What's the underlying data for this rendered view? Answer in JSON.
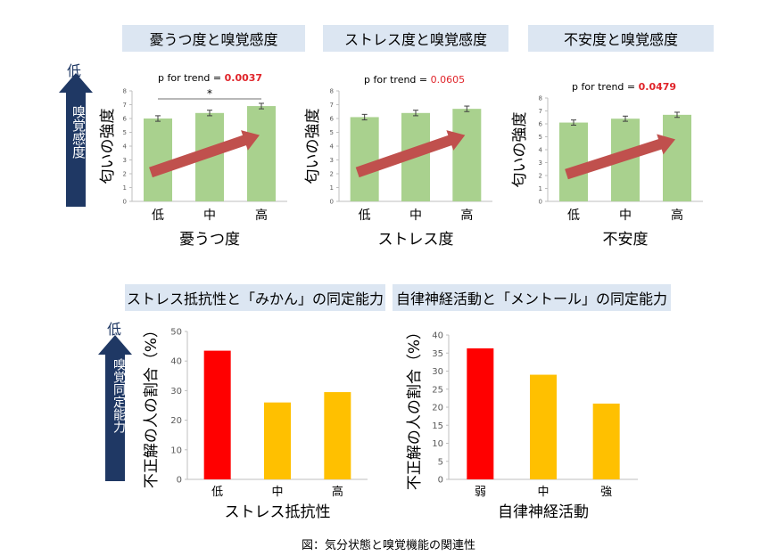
{
  "top_left_label": "低",
  "top_side_label": "嗅覚感度",
  "bottom_left_label": "低",
  "bottom_side_label": "嗅覚同定能力",
  "caption": "図：気分状態と嗅覚機能の関連性",
  "chart_data": [
    {
      "type": "bar",
      "title": "憂うつ度と嗅覚感度",
      "categories": [
        "低",
        "中",
        "高"
      ],
      "values": [
        6.0,
        6.4,
        6.9
      ],
      "errors": [
        0.2,
        0.2,
        0.2
      ],
      "ylabel": "匂いの強度",
      "xlabel": "憂うつ度",
      "ylim": [
        0,
        8
      ],
      "yticks": [
        0,
        1,
        2,
        3,
        4,
        5,
        6,
        7,
        8
      ],
      "trend_prefix": "p for trend = ",
      "trend_value": "0.0037",
      "significance": "*",
      "bar_color": "#a9d18e",
      "trend_arrow_color": "#c0504d"
    },
    {
      "type": "bar",
      "title": "ストレス度と嗅覚感度",
      "categories": [
        "低",
        "中",
        "高"
      ],
      "values": [
        6.1,
        6.4,
        6.7
      ],
      "errors": [
        0.2,
        0.2,
        0.2
      ],
      "ylabel": "匂いの強度",
      "xlabel": "ストレス度",
      "ylim": [
        0,
        8
      ],
      "yticks": [
        0,
        1,
        2,
        3,
        4,
        5,
        6,
        7,
        8
      ],
      "trend_prefix": "p for trend = ",
      "trend_value": "0.0605",
      "bar_color": "#a9d18e",
      "trend_arrow_color": "#c0504d"
    },
    {
      "type": "bar",
      "title": "不安度と嗅覚感度",
      "categories": [
        "低",
        "中",
        "高"
      ],
      "values": [
        6.1,
        6.4,
        6.7
      ],
      "errors": [
        0.2,
        0.2,
        0.2
      ],
      "ylabel": "匂いの強度",
      "xlabel": "不安度",
      "ylim": [
        0,
        8
      ],
      "yticks": [
        0,
        1,
        2,
        3,
        4,
        5,
        6,
        7,
        8
      ],
      "trend_prefix": "p for trend = ",
      "trend_value": "0.0479",
      "bar_color": "#a9d18e",
      "trend_arrow_color": "#c0504d"
    },
    {
      "type": "bar",
      "title": "ストレス抵抗性と「みかん」の同定能力",
      "categories": [
        "低",
        "中",
        "高"
      ],
      "values": [
        43.5,
        26,
        29.5
      ],
      "colors": [
        "#ff0000",
        "#ffc000",
        "#ffc000"
      ],
      "ylabel": "不正解の人の割合（%）",
      "xlabel": "ストレス抵抗性",
      "ylim": [
        0,
        50
      ],
      "yticks": [
        0,
        10,
        20,
        30,
        40,
        50
      ]
    },
    {
      "type": "bar",
      "title": "自律神経活動と「メントール」の同定能力",
      "categories": [
        "弱",
        "中",
        "強"
      ],
      "values": [
        36.3,
        29,
        21
      ],
      "colors": [
        "#ff0000",
        "#ffc000",
        "#ffc000"
      ],
      "ylabel": "不正解の人の割合（%）",
      "xlabel": "自律神経活動",
      "ylim": [
        0,
        40
      ],
      "yticks": [
        0,
        5,
        10,
        15,
        20,
        25,
        30,
        35,
        40
      ]
    }
  ]
}
